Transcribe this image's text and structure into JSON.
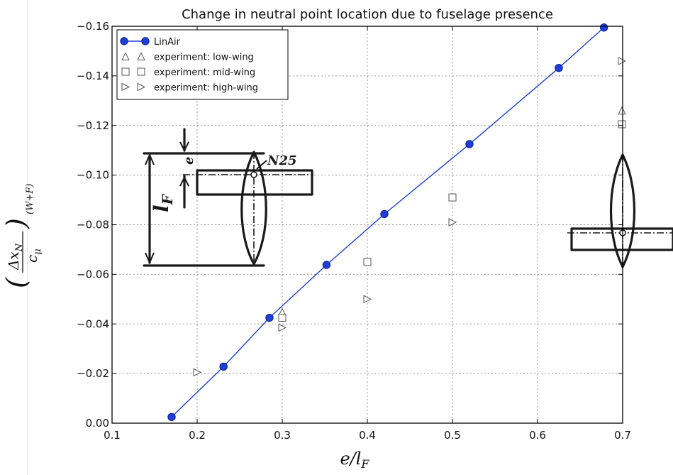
{
  "chart_data": {
    "type": "scatter",
    "title": "Change in neutral point location due to fuselage presence",
    "xlabel": "e/l_F",
    "ylabel": "(Δx_N / c_μ)_(W+F)",
    "xlim": [
      0.1,
      0.7
    ],
    "ylim": [
      0.0,
      -0.16
    ],
    "y_axis_inverted": true,
    "grid": true,
    "legend_position": "top-left",
    "x_ticks": [
      "0.1",
      "0.2",
      "0.3",
      "0.4",
      "0.5",
      "0.6",
      "0.7"
    ],
    "y_ticks": [
      "0.00",
      "−0.02",
      "−0.04",
      "−0.06",
      "−0.08",
      "−0.10",
      "−0.12",
      "−0.14",
      "−0.16"
    ],
    "series": [
      {
        "name": "LinAir",
        "marker": "circle",
        "line": true,
        "color": "#1f3fd6",
        "x": [
          0.17,
          0.231,
          0.285,
          0.352,
          0.42,
          0.52,
          0.625,
          0.678
        ],
        "y": [
          -0.0025,
          -0.0228,
          -0.0425,
          -0.0638,
          -0.0843,
          -0.1125,
          -0.1432,
          -0.1595
        ]
      },
      {
        "name": "experiment: low-wing",
        "marker": "triangle-up",
        "line": false,
        "color": "#555555",
        "x": [
          0.3,
          0.7
        ],
        "y": [
          -0.0448,
          -0.126
        ]
      },
      {
        "name": "experiment: mid-wing",
        "marker": "square",
        "line": false,
        "color": "#555555",
        "x": [
          0.3,
          0.4,
          0.5,
          0.7
        ],
        "y": [
          -0.0425,
          -0.065,
          -0.091,
          -0.1205
        ]
      },
      {
        "name": "experiment: high-wing",
        "marker": "triangle-right",
        "line": false,
        "color": "#555555",
        "x": [
          0.2,
          0.3,
          0.4,
          0.5,
          0.7
        ],
        "y": [
          -0.0205,
          -0.0385,
          -0.05,
          -0.081,
          -0.146
        ]
      }
    ],
    "annotations": {
      "sketch_label_n25": "N25",
      "sketch_label_e": "e",
      "sketch_label_lf": "l_F"
    }
  }
}
